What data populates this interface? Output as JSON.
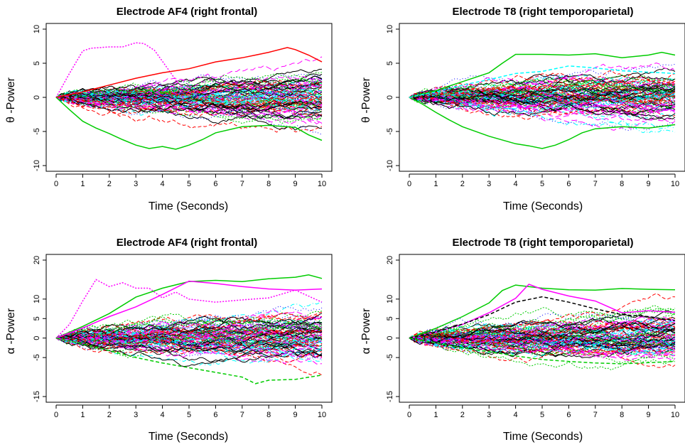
{
  "chart_data": [
    {
      "type": "line",
      "title": "Electrode AF4 (right frontal)",
      "xlabel": "Time (Seconds)",
      "ylabel": "θ -Power",
      "xlim": [
        0,
        10
      ],
      "ylim": [
        -10,
        10
      ],
      "x_ticks": [
        0,
        1,
        2,
        3,
        4,
        5,
        6,
        7,
        8,
        9,
        10
      ],
      "y_ticks": [
        -10,
        -5,
        0,
        5,
        10
      ],
      "series_count": 110,
      "highlighted_series": [
        {
          "color": "#ff00ff",
          "style": "dotted",
          "x": [
            0,
            0.5,
            1,
            1.3,
            2,
            2.5,
            3,
            3.3,
            3.7,
            4.2,
            4.6,
            5
          ],
          "y": [
            0,
            3.5,
            6.8,
            7.2,
            7.4,
            7.4,
            8,
            7.9,
            6.9,
            4.2,
            2.0,
            1.0
          ]
        },
        {
          "color": "#ff0000",
          "style": "solid",
          "x": [
            0,
            1,
            2,
            3,
            4,
            5,
            6,
            7,
            7.5,
            8,
            8.7,
            9,
            9.5,
            10
          ],
          "y": [
            0,
            0.8,
            1.8,
            2.8,
            3.6,
            4.2,
            5.2,
            5.8,
            6.2,
            6.6,
            7.3,
            7.0,
            6.2,
            5.2
          ]
        },
        {
          "color": "#00cc00",
          "style": "solid",
          "x": [
            0,
            0.5,
            1,
            1.5,
            2,
            2.5,
            3,
            3.5,
            4,
            4.5,
            5,
            5.5,
            6,
            7,
            8,
            9,
            9.5,
            10
          ],
          "y": [
            0,
            -1.8,
            -3.5,
            -4.5,
            -5.3,
            -6.2,
            -7.0,
            -7.5,
            -7.2,
            -7.6,
            -7.0,
            -6.2,
            -5.2,
            -4.3,
            -4.1,
            -4.4,
            -5.5,
            -6.3
          ]
        }
      ]
    },
    {
      "type": "line",
      "title": "Electrode T8 (right temporoparietal)",
      "xlabel": "Time (Seconds)",
      "ylabel": "θ -Power",
      "xlim": [
        0,
        10
      ],
      "ylim": [
        -10,
        10
      ],
      "x_ticks": [
        0,
        1,
        2,
        3,
        4,
        5,
        6,
        7,
        8,
        9,
        10
      ],
      "y_ticks": [
        -10,
        -5,
        0,
        5,
        10
      ],
      "series_count": 110,
      "highlighted_series": [
        {
          "color": "#00cc00",
          "style": "solid",
          "x": [
            0,
            1,
            2,
            3,
            3.5,
            4,
            5,
            6,
            7,
            8,
            9,
            9.5,
            10
          ],
          "y": [
            0,
            1.0,
            2.3,
            3.6,
            5.0,
            6.3,
            6.3,
            6.2,
            6.4,
            5.8,
            6.2,
            6.6,
            6.2
          ]
        },
        {
          "color": "#00cc00",
          "style": "solid",
          "x": [
            0,
            0.5,
            1,
            1.5,
            2,
            3,
            4,
            4.5,
            5,
            5.5,
            6,
            6.5,
            7,
            8,
            9,
            10
          ],
          "y": [
            0,
            -1.0,
            -2.2,
            -3.3,
            -4.3,
            -5.7,
            -6.8,
            -7.1,
            -7.5,
            -7.0,
            -6.2,
            -5.2,
            -4.6,
            -4.3,
            -4.5,
            -4.0
          ]
        },
        {
          "color": "#00ffff",
          "style": "dashed",
          "x": [
            0,
            1,
            2,
            3,
            4,
            5,
            6,
            7,
            8,
            9,
            10
          ],
          "y": [
            0,
            0.8,
            1.8,
            2.6,
            3.5,
            3.8,
            4.6,
            4.3,
            3.9,
            3.7,
            3.5
          ]
        }
      ]
    },
    {
      "type": "line",
      "title": "Electrode AF4 (right frontal)",
      "xlabel": "Time (Seconds)",
      "ylabel": "α -Power",
      "xlim": [
        0,
        10
      ],
      "ylim": [
        -15,
        20
      ],
      "x_ticks": [
        0,
        1,
        2,
        3,
        4,
        5,
        6,
        7,
        8,
        9,
        10
      ],
      "y_ticks": [
        -15,
        -5,
        0,
        5,
        10,
        20
      ],
      "series_count": 110,
      "highlighted_series": [
        {
          "color": "#ff00ff",
          "style": "dotted",
          "x": [
            0,
            0.5,
            1,
            1.5,
            2,
            2.5,
            3,
            3.5,
            4,
            4.5,
            5,
            6,
            7,
            8,
            9,
            10
          ],
          "y": [
            0,
            3.5,
            9.5,
            15.0,
            13.2,
            14.2,
            12.8,
            12.8,
            10.3,
            11.8,
            10.0,
            9.2,
            9.8,
            10.3,
            12.3,
            9.2
          ]
        },
        {
          "color": "#00cc00",
          "style": "solid",
          "x": [
            0,
            1,
            2,
            3,
            4,
            5,
            6,
            7,
            8,
            9,
            9.5,
            10
          ],
          "y": [
            0,
            3.0,
            6.3,
            10.5,
            12.8,
            14.5,
            14.8,
            14.5,
            15.2,
            15.6,
            16.2,
            15.3
          ]
        },
        {
          "color": "#ff00ff",
          "style": "solid",
          "x": [
            0,
            1,
            2,
            3,
            4,
            5,
            6,
            7,
            8,
            9,
            10
          ],
          "y": [
            0,
            2.6,
            5.5,
            8.0,
            11.2,
            14.6,
            14.0,
            13.2,
            12.6,
            12.3,
            12.6
          ]
        },
        {
          "color": "#00cc00",
          "style": "dashed",
          "x": [
            0,
            1,
            2,
            3,
            4,
            5,
            6,
            7,
            7.5,
            8,
            9,
            10
          ],
          "y": [
            0,
            -1.5,
            -3.2,
            -5.0,
            -6.4,
            -7.6,
            -8.8,
            -10.0,
            -11.7,
            -10.8,
            -10.6,
            -9.5
          ]
        }
      ]
    },
    {
      "type": "line",
      "title": "Electrode T8 (right temporoparietal)",
      "xlabel": "Time (Seconds)",
      "ylabel": "α -Power",
      "xlim": [
        0,
        10
      ],
      "ylim": [
        -15,
        20
      ],
      "x_ticks": [
        0,
        1,
        2,
        3,
        4,
        5,
        6,
        7,
        8,
        9,
        10
      ],
      "y_ticks": [
        -15,
        -5,
        0,
        5,
        10,
        20
      ],
      "series_count": 110,
      "highlighted_series": [
        {
          "color": "#00cc00",
          "style": "solid",
          "x": [
            0,
            1,
            2,
            3,
            3.5,
            4,
            5,
            6,
            7,
            8,
            9,
            10
          ],
          "y": [
            0,
            2.5,
            5.5,
            9.0,
            12.2,
            13.6,
            12.8,
            12.4,
            12.3,
            12.7,
            12.5,
            12.4
          ]
        },
        {
          "color": "#ff00ff",
          "style": "solid",
          "x": [
            0,
            1,
            2,
            3,
            4,
            4.5,
            5,
            6,
            7,
            8,
            9,
            10
          ],
          "y": [
            0,
            1.5,
            3.5,
            6.5,
            10.2,
            13.8,
            12.5,
            10.8,
            9.5,
            6.5,
            7.0,
            6.6
          ]
        },
        {
          "color": "#000000",
          "style": "dashed",
          "x": [
            0,
            1,
            2,
            3,
            4,
            5,
            6,
            7,
            8,
            9,
            10
          ],
          "y": [
            0,
            1.5,
            3.6,
            6.0,
            9.2,
            10.6,
            9.2,
            7.5,
            6.0,
            5.5,
            4.5
          ]
        },
        {
          "color": "#00cc00",
          "style": "dashed",
          "x": [
            0,
            1,
            2,
            3,
            4,
            5,
            6,
            7,
            8,
            9,
            10
          ],
          "y": [
            0,
            -1.2,
            -2.5,
            -3.5,
            -4.6,
            -5.5,
            -6.0,
            -6.4,
            -6.6,
            -6.3,
            -6.0
          ]
        }
      ]
    }
  ]
}
